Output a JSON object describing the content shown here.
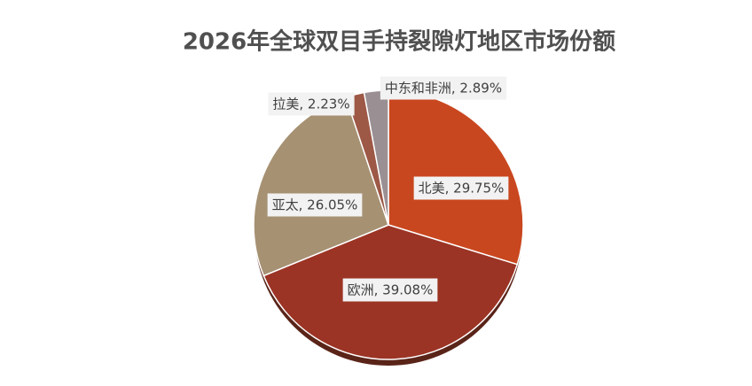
{
  "chart_data": {
    "type": "pie",
    "title": "2026年全球双目手持裂隙灯地区市场份额",
    "values": [
      29.75,
      39.08,
      26.05,
      2.23,
      2.89
    ],
    "value_labels": [
      "北美, 29.75%",
      "欧洲, 39.08%",
      "亚太, 26.05%",
      "拉美, 2.23%",
      "中东和非洲, 2.89%"
    ],
    "colors": [
      "#c9471f",
      "#9b3425",
      "#a69173",
      "#9d5846",
      "#9a8f92"
    ]
  }
}
